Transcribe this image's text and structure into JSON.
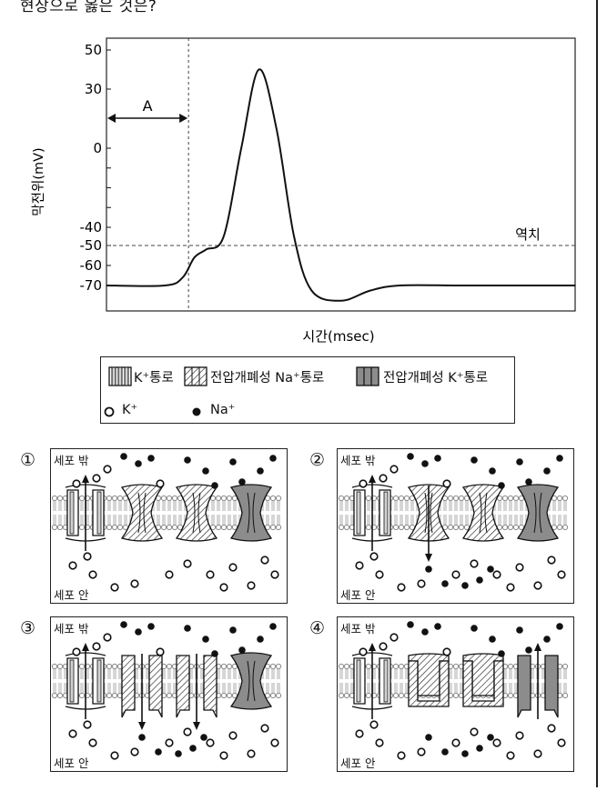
{
  "question": {
    "stem_fragment": "현상으로 옳은 것은?"
  },
  "chart_data": {
    "type": "line",
    "ylabel": "막전위(mV)",
    "xlabel": "시간(msec)",
    "y_ticks": [
      50,
      30,
      0,
      -40,
      -50,
      -60,
      -70
    ],
    "ylim": [
      -80,
      55
    ],
    "threshold": {
      "value": -50,
      "label": "역치"
    },
    "annotation": {
      "label": "A",
      "description": "resting interval before stimulus"
    },
    "series": [
      {
        "x": [
          0,
          1.0,
          1.3,
          1.5,
          1.7,
          2.0,
          2.3,
          2.6,
          2.9,
          3.2,
          3.5,
          4.0,
          4.5,
          5.0,
          6.0,
          7.0,
          8.0
        ],
        "values": [
          -70,
          -70,
          -66,
          -56,
          -52,
          -45,
          0,
          40,
          10,
          -45,
          -72,
          -76,
          -72,
          -70,
          -70,
          -70,
          -70
        ]
      }
    ]
  },
  "legend": {
    "items": [
      {
        "label": "K⁺통로",
        "icon": "k-channel-icon"
      },
      {
        "label": "전압개폐성 Na⁺통로",
        "icon": "gated-na-channel-icon"
      },
      {
        "label": "전압개폐성 K⁺통로",
        "icon": "gated-k-channel-icon"
      }
    ],
    "ions": [
      {
        "label": "K⁺",
        "icon": "k-ion-open-circle"
      },
      {
        "label": "Na⁺",
        "icon": "na-ion-filled-circle"
      }
    ]
  },
  "options": [
    {
      "number": "①",
      "outside": "세포 밖",
      "inside": "세포 안",
      "na_channel": "closed",
      "gated_k": "closed",
      "arrows": [
        "k-up"
      ]
    },
    {
      "number": "②",
      "outside": "세포 밖",
      "inside": "세포 안",
      "na_channel": "closed",
      "gated_k": "closed",
      "arrows": [
        "k-up",
        "na-down"
      ]
    },
    {
      "number": "③",
      "outside": "세포 밖",
      "inside": "세포 안",
      "na_channel": "open",
      "gated_k": "closed",
      "arrows": [
        "k-up",
        "na-down",
        "na-down"
      ]
    },
    {
      "number": "④",
      "outside": "세포 밖",
      "inside": "세포 안",
      "na_channel": "inactivated",
      "gated_k": "open",
      "arrows": [
        "k-up",
        "k-up"
      ]
    }
  ],
  "colors": {
    "ink": "#111111",
    "channel_gray": "#bdbdbd",
    "channel_dark": "#8c8c8c",
    "membrane": "#9a9a9a"
  }
}
